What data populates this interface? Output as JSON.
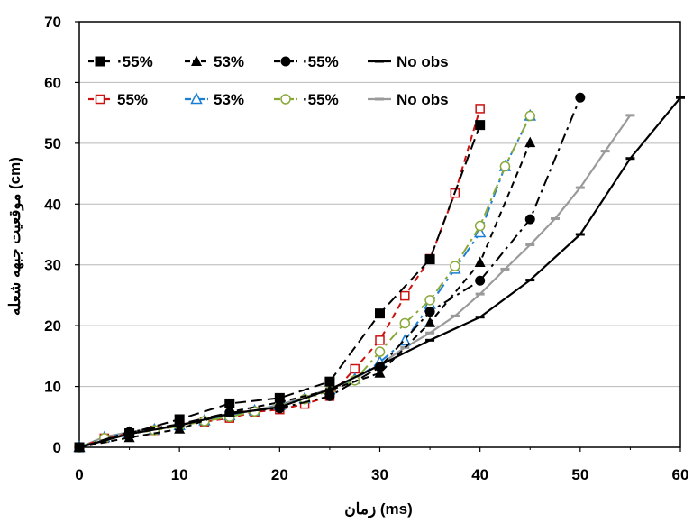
{
  "chart_data": {
    "type": "line",
    "xlabel": "زمان (ms)",
    "ylabel": "موقعیت جبهه شعله (cm)",
    "xlim": [
      0,
      60
    ],
    "ylim": [
      0,
      70
    ],
    "xticks": [
      "0",
      "10",
      "20",
      "30",
      "40",
      "50",
      "60"
    ],
    "yticks": [
      "0",
      "10",
      "20",
      "30",
      "40",
      "50",
      "60",
      "70"
    ],
    "grid": "horizontal",
    "legend_position": "top-left",
    "series": [
      {
        "name": "·55%",
        "color": "#000000",
        "dash": "long-dash",
        "marker": "square-filled",
        "x": [
          0,
          5,
          10,
          15,
          20,
          25,
          30,
          35,
          40
        ],
        "y": [
          0,
          2.3,
          4.6,
          7.2,
          8.1,
          10.8,
          22.0,
          30.9,
          53.0
        ]
      },
      {
        "name": "53%",
        "color": "#000000",
        "dash": "short-dash",
        "marker": "triangle-filled",
        "x": [
          0,
          5,
          10,
          15,
          20,
          25,
          30,
          35,
          40,
          45
        ],
        "y": [
          0,
          1.6,
          3.0,
          5.8,
          7.4,
          9.4,
          12.2,
          20.5,
          30.4,
          50.1
        ]
      },
      {
        "name": "·55%",
        "color": "#000000",
        "dash": "dash-dot",
        "marker": "circle-filled",
        "x": [
          0,
          5,
          10,
          15,
          20,
          25,
          30,
          35,
          40,
          45,
          50
        ],
        "y": [
          0,
          2.5,
          3.8,
          5.7,
          6.4,
          8.4,
          13.2,
          22.3,
          27.4,
          37.5,
          57.5
        ]
      },
      {
        "name": "No obs",
        "color": "#000000",
        "dash": "solid",
        "marker": "dash",
        "x": [
          0,
          5,
          10,
          15,
          20,
          25,
          30,
          35,
          40,
          45,
          50,
          55,
          60
        ],
        "y": [
          0,
          2.2,
          3.6,
          5.5,
          6.6,
          9.5,
          13.5,
          17.6,
          21.4,
          27.5,
          35.0,
          47.5,
          57.5
        ]
      },
      {
        "name": "55%",
        "color": "#cc1111",
        "dash": "short-dash",
        "marker": "square-open",
        "x": [
          0,
          2.5,
          5,
          7.5,
          10,
          12.5,
          15,
          17.5,
          20,
          22.5,
          25,
          27.5,
          30,
          32.5,
          35,
          37.5,
          40
        ],
        "y": [
          0,
          1.5,
          2.3,
          2.8,
          3.8,
          4.2,
          4.8,
          5.8,
          6.2,
          7.1,
          8.4,
          12.9,
          17.6,
          24.9,
          31.0,
          41.8,
          55.7
        ]
      },
      {
        "name": "53%",
        "color": "#1a7fd4",
        "dash": "dash-dot",
        "marker": "triangle-open",
        "x": [
          0,
          2.5,
          5,
          7.5,
          10,
          12.5,
          15,
          17.5,
          20,
          22.5,
          25,
          27.5,
          30,
          32.5,
          35,
          37.5,
          40,
          42.5,
          45
        ],
        "y": [
          0,
          1.6,
          2.4,
          2.9,
          3.6,
          4.4,
          5.2,
          6.0,
          6.9,
          8.0,
          9.5,
          11.2,
          14.0,
          17.5,
          23.5,
          29.3,
          35.3,
          46.2,
          54.5
        ]
      },
      {
        "name": "·55%",
        "color": "#8aa83a",
        "dash": "dash-dot",
        "marker": "circle-open",
        "x": [
          0,
          2.5,
          5,
          7.5,
          10,
          12.5,
          15,
          17.5,
          20,
          22.5,
          25,
          27.5,
          30,
          32.5,
          35,
          37.5,
          40,
          42.5,
          45
        ],
        "y": [
          0,
          1.5,
          2.2,
          2.8,
          3.5,
          4.3,
          5.0,
          5.9,
          6.8,
          7.9,
          9.3,
          11.0,
          15.7,
          20.4,
          24.2,
          29.8,
          36.4,
          46.2,
          54.5
        ]
      },
      {
        "name": "No obs",
        "color": "#9a9a9a",
        "dash": "solid",
        "marker": "dash",
        "x": [
          0,
          2.5,
          5,
          7.5,
          10,
          12.5,
          15,
          17.5,
          20,
          22.5,
          25,
          27.5,
          30,
          32.5,
          35,
          37.5,
          40,
          42.5,
          45,
          47.5,
          50,
          52.5,
          55
        ],
        "y": [
          0,
          1.7,
          2.5,
          3.0,
          3.7,
          4.5,
          5.3,
          6.1,
          7.0,
          8.2,
          9.6,
          11.3,
          13.6,
          16.4,
          18.8,
          21.6,
          25.2,
          29.3,
          33.3,
          37.6,
          42.7,
          48.7,
          54.6
        ]
      }
    ]
  }
}
